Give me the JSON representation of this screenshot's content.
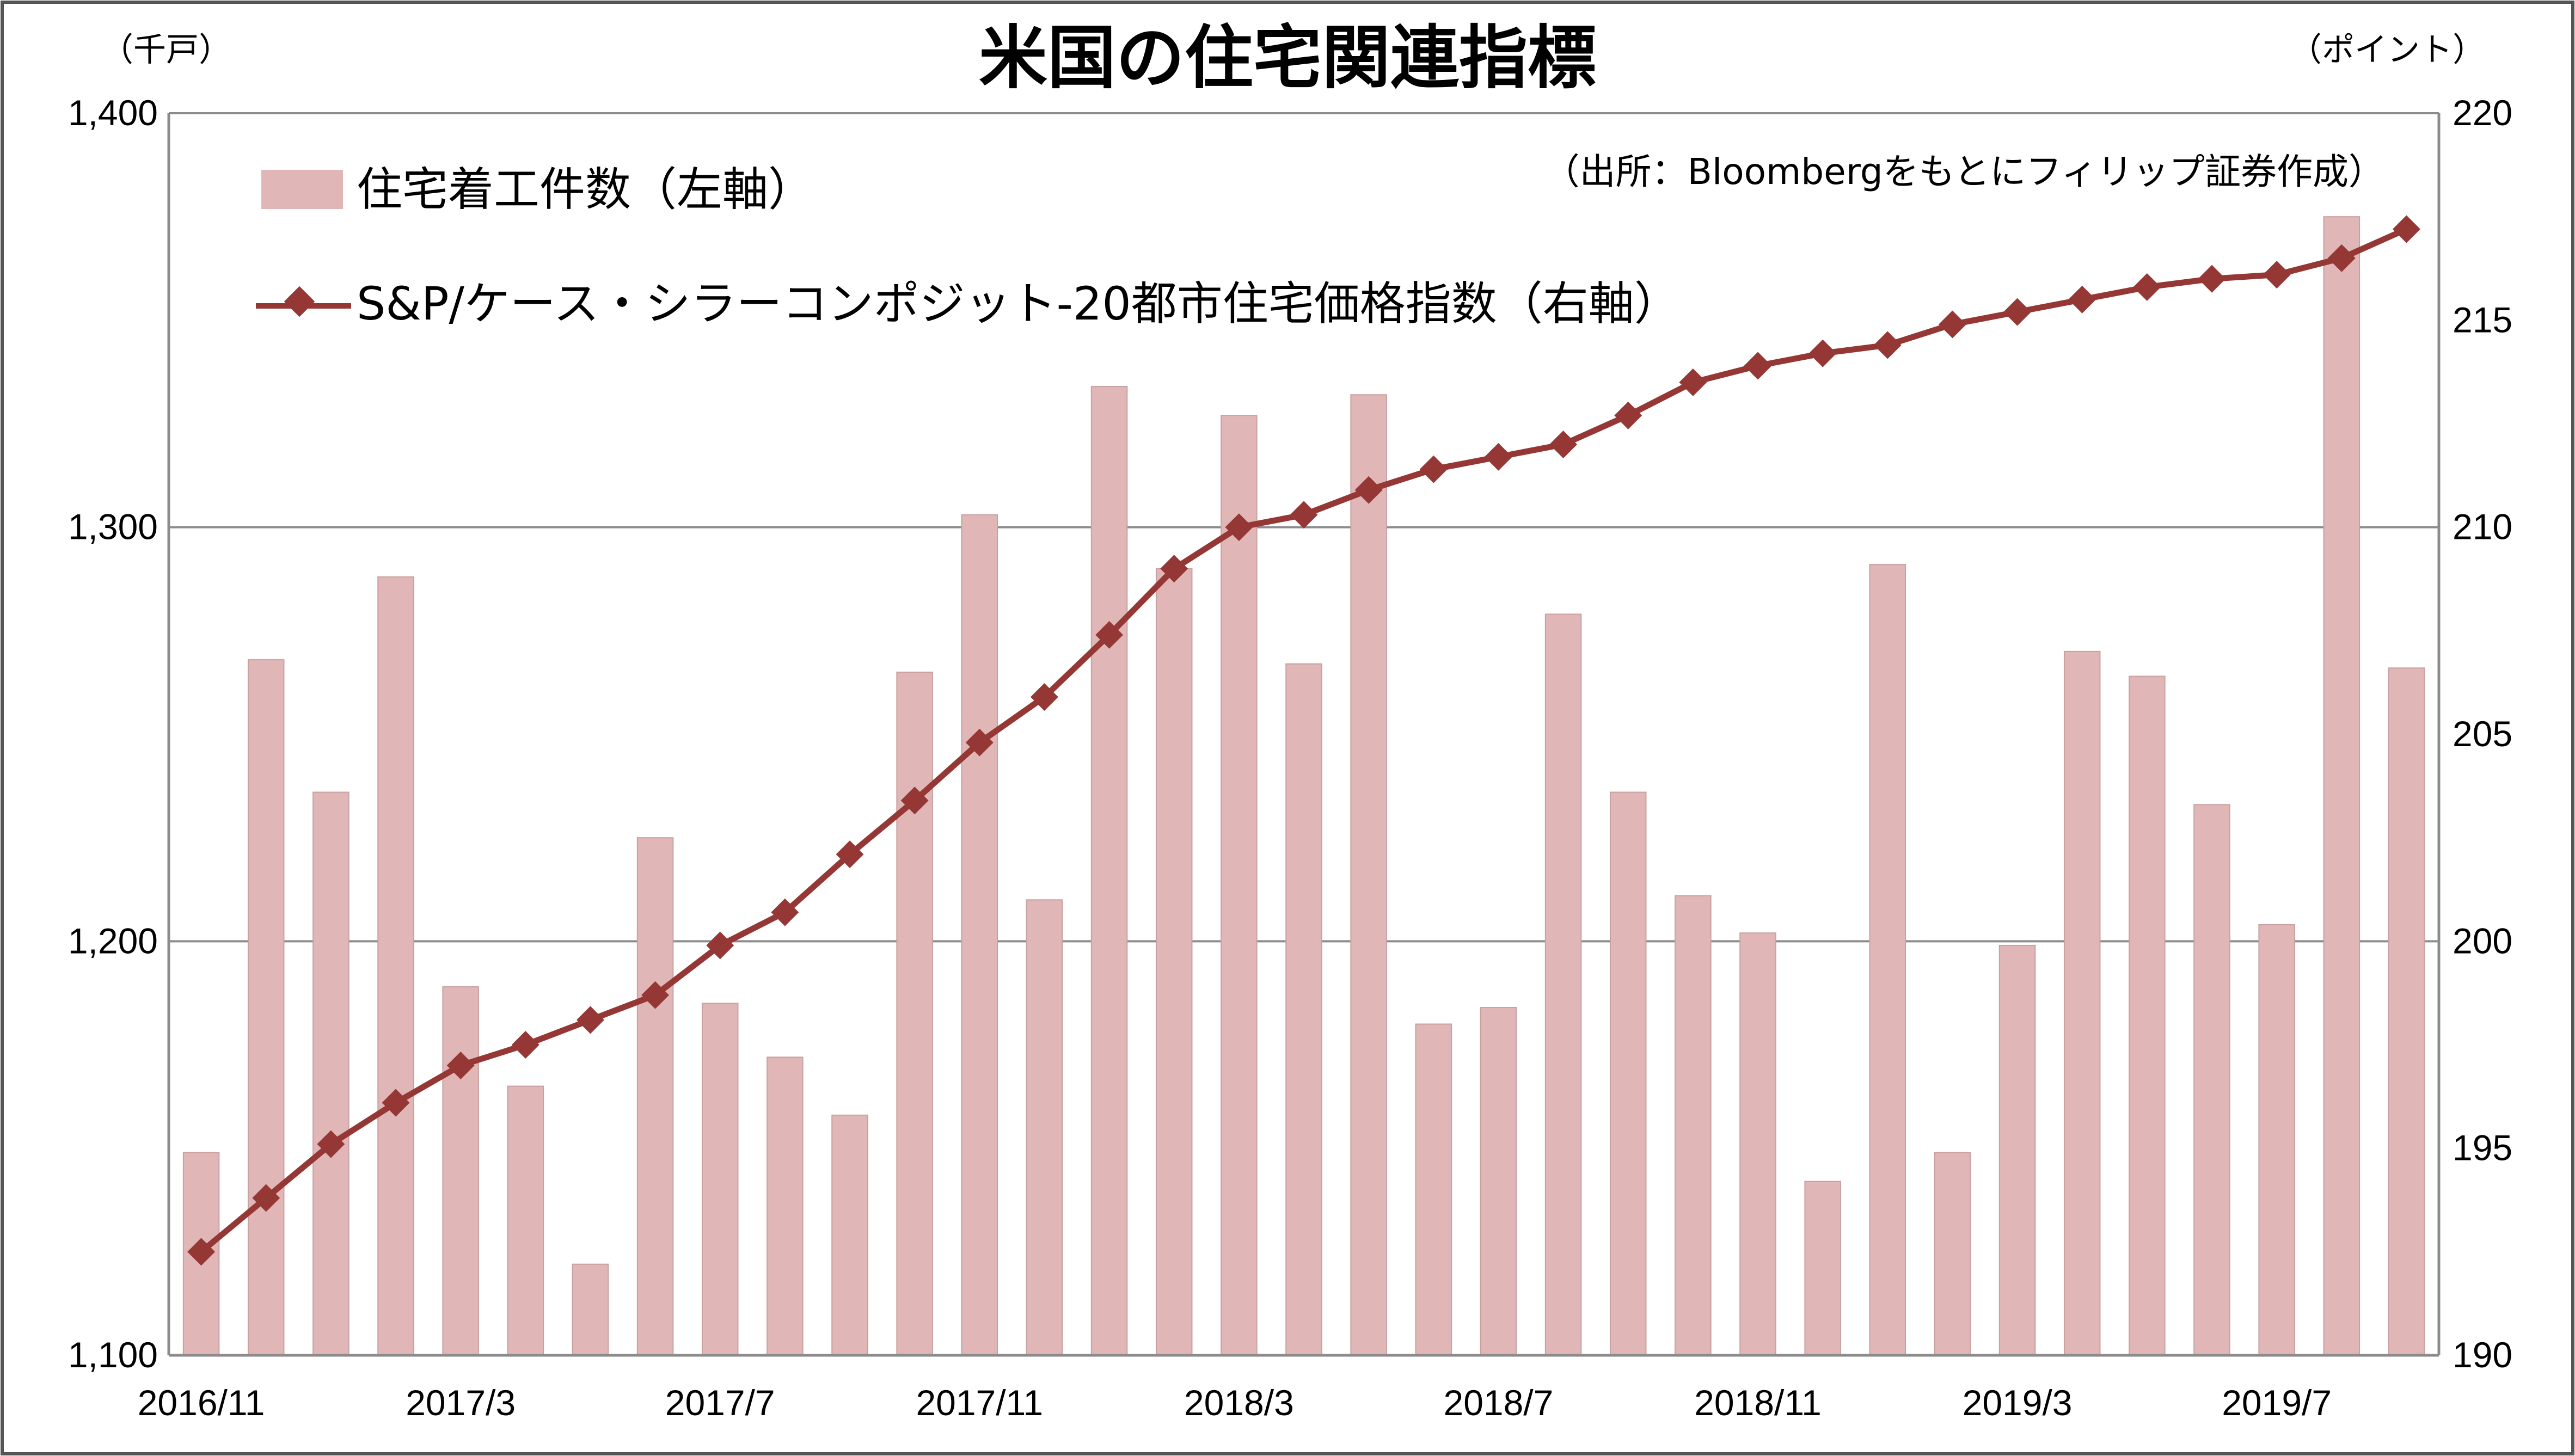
{
  "chart_data": {
    "type": "bar+line",
    "title": "米国の住宅関連指標",
    "source": "（出所：Bloombergをもとにフィリップ証券作成）",
    "left_unit": "（千戸）",
    "right_unit": "（ポイント）",
    "left_axis": {
      "min": 1100,
      "max": 1400,
      "ticks": [
        "1,100",
        "1,200",
        "1,300",
        "1,400"
      ],
      "tick_values": [
        1100,
        1200,
        1300,
        1400
      ]
    },
    "right_axis": {
      "min": 190,
      "max": 220,
      "ticks": [
        "190",
        "195",
        "200",
        "205",
        "210",
        "215",
        "220"
      ],
      "tick_values": [
        190,
        195,
        200,
        205,
        210,
        215,
        220
      ]
    },
    "grid": true,
    "legend_position": "top-left",
    "colors": {
      "bar": "#e0b6b6",
      "bar_edge": "#c9a0a0",
      "line": "#953735",
      "grid": "#8c8c8c",
      "axis": "#8c8c8c"
    },
    "categories": [
      "2016/11",
      "2016/12",
      "2017/1",
      "2017/2",
      "2017/3",
      "2017/4",
      "2017/5",
      "2017/6",
      "2017/7",
      "2017/8",
      "2017/9",
      "2017/10",
      "2017/11",
      "2017/12",
      "2018/1",
      "2018/2",
      "2018/3",
      "2018/4",
      "2018/5",
      "2018/6",
      "2018/7",
      "2018/8",
      "2018/9",
      "2018/10",
      "2018/11",
      "2018/12",
      "2019/1",
      "2019/2",
      "2019/3",
      "2019/4",
      "2019/5",
      "2019/6",
      "2019/7",
      "2019/8",
      "2019/9"
    ],
    "x_tick_labels": [
      {
        "index": 0,
        "label": "2016/11"
      },
      {
        "index": 4,
        "label": "2017/3"
      },
      {
        "index": 8,
        "label": "2017/7"
      },
      {
        "index": 12,
        "label": "2017/11"
      },
      {
        "index": 16,
        "label": "2018/3"
      },
      {
        "index": 20,
        "label": "2018/7"
      },
      {
        "index": 24,
        "label": "2018/11"
      },
      {
        "index": 28,
        "label": "2019/3"
      },
      {
        "index": 32,
        "label": "2019/7"
      }
    ],
    "series": [
      {
        "name": "住宅着工件数（左軸）",
        "type": "bar",
        "axis": "left",
        "values": [
          1149,
          1268,
          1236,
          1288,
          1189,
          1165,
          1122,
          1225,
          1185,
          1172,
          1158,
          1265,
          1303,
          1210,
          1334,
          1290,
          1327,
          1267,
          1332,
          1180,
          1184,
          1279,
          1236,
          1211,
          1202,
          1142,
          1291,
          1149,
          1199,
          1270,
          1264,
          1233,
          1204,
          1375,
          1266
        ]
      },
      {
        "name": "S&P/ケース・シラーコンポジット-20都市住宅価格指数（右軸）",
        "type": "line",
        "axis": "right",
        "values": [
          192.5,
          193.8,
          195.1,
          196.1,
          197.0,
          197.5,
          198.1,
          198.7,
          199.9,
          200.7,
          202.1,
          203.4,
          204.8,
          205.9,
          207.4,
          209.0,
          210.0,
          210.3,
          210.9,
          211.4,
          211.7,
          212.0,
          212.7,
          213.5,
          213.9,
          214.2,
          214.4,
          214.9,
          215.2,
          215.5,
          215.8,
          216.0,
          216.1,
          216.5,
          217.2
        ]
      }
    ]
  }
}
